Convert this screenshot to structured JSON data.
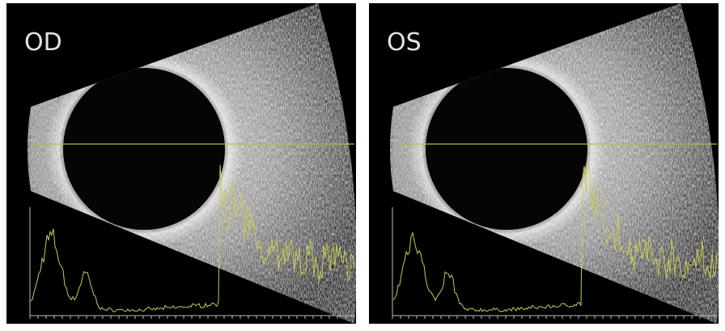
{
  "panels": [
    {
      "label": "OD"
    },
    {
      "label": "OS"
    }
  ]
}
